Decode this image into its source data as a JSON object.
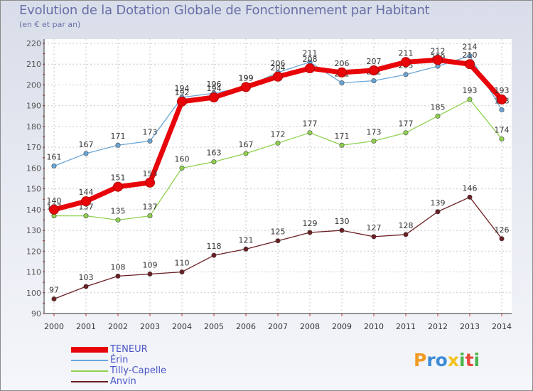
{
  "page": {
    "title": "Evolution de la Dotation Globale de Fonctionnement par Habitant",
    "subtitle": "(en € et par an)",
    "logo": "Proxiti",
    "logo_chars": [
      "P",
      "r",
      "o",
      "x",
      "i",
      "t",
      "i"
    ]
  },
  "chart_data": {
    "type": "line",
    "title": "Evolution de la Dotation Globale de Fonctionnement par Habitant",
    "ylabel": "(en € et par an)",
    "xlabel": "",
    "ylim": [
      90,
      220
    ],
    "yticks": [
      90,
      100,
      110,
      120,
      130,
      140,
      150,
      160,
      170,
      180,
      190,
      200,
      210,
      220
    ],
    "categories": [
      "2000",
      "2001",
      "2002",
      "2003",
      "2004",
      "2005",
      "2006",
      "2007",
      "2008",
      "2009",
      "2010",
      "2011",
      "2012",
      "2013",
      "2014"
    ],
    "grid": true,
    "legend_position": "bottom-left",
    "series": [
      {
        "name": "Anvin",
        "color": "#6b1f23",
        "values": [
          97,
          103,
          108,
          109,
          110,
          118,
          121,
          125,
          129,
          130,
          127,
          128,
          139,
          146,
          126
        ]
      },
      {
        "name": "Tilly-Capelle",
        "color": "#8fd14f",
        "values": [
          137,
          137,
          135,
          137,
          160,
          163,
          167,
          172,
          177,
          171,
          173,
          177,
          185,
          193,
          174
        ]
      },
      {
        "name": "Érin",
        "color": "#6aa6d8",
        "values": [
          161,
          167,
          171,
          173,
          194,
          196,
          199,
          206,
          211,
          201,
          202,
          205,
          209,
          214,
          188
        ]
      },
      {
        "name": "TENEUR",
        "color": "#e8050a",
        "values": [
          140,
          144,
          151,
          153,
          192,
          194,
          199,
          204,
          208,
          206,
          207,
          211,
          212,
          210,
          193
        ]
      }
    ],
    "legend_order": [
      "TENEUR",
      "Érin",
      "Tilly-Capelle",
      "Anvin"
    ]
  }
}
